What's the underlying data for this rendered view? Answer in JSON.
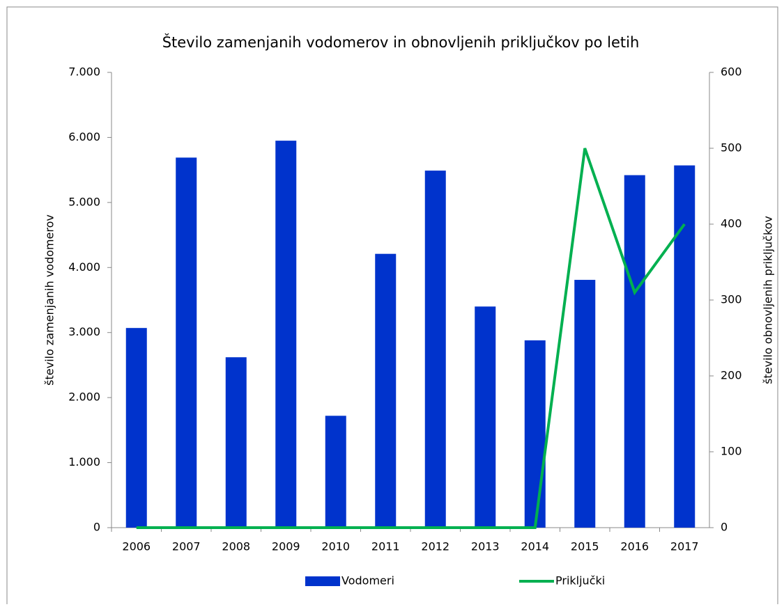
{
  "chart_data": {
    "type": "bar_line",
    "title": "Število zamenjanih vodomerov in obnovljenih priključkov po letih",
    "ylabel": "število zamenjanih vodomerov",
    "y2label": "število obnovljenih priključkov",
    "categories": [
      "2006",
      "2007",
      "2008",
      "2009",
      "2010",
      "2011",
      "2012",
      "2013",
      "2014",
      "2015",
      "2016",
      "2017"
    ],
    "series": [
      {
        "name": "Vodomeri",
        "type": "bar",
        "color": "#0033cc",
        "values": [
          3070,
          5690,
          2620,
          5950,
          1720,
          4210,
          5490,
          3400,
          2880,
          3810,
          5420,
          5570
        ]
      },
      {
        "name": "Priključki",
        "type": "line",
        "axis": "y2",
        "color": "#00b050",
        "values": [
          0,
          0,
          0,
          0,
          0,
          0,
          0,
          0,
          0,
          500,
          310,
          400
        ]
      }
    ],
    "ylim": [
      0,
      7000
    ],
    "yticks": [
      0,
      {
        "value": 1000,
        "label": "1.000"
      },
      {
        "value": 2000,
        "label": "2.000"
      },
      {
        "value": 3000,
        "label": "3.000"
      },
      {
        "value": 4000,
        "label": "4.000"
      },
      {
        "value": 5000,
        "label": "5.000"
      },
      {
        "value": 6000,
        "label": "6.000"
      },
      {
        "value": 7000,
        "label": "7.000"
      }
    ],
    "y2lim": [
      0,
      600
    ],
    "y2ticks": [
      0,
      100,
      200,
      300,
      400,
      500,
      600
    ],
    "legend": "bottom"
  }
}
